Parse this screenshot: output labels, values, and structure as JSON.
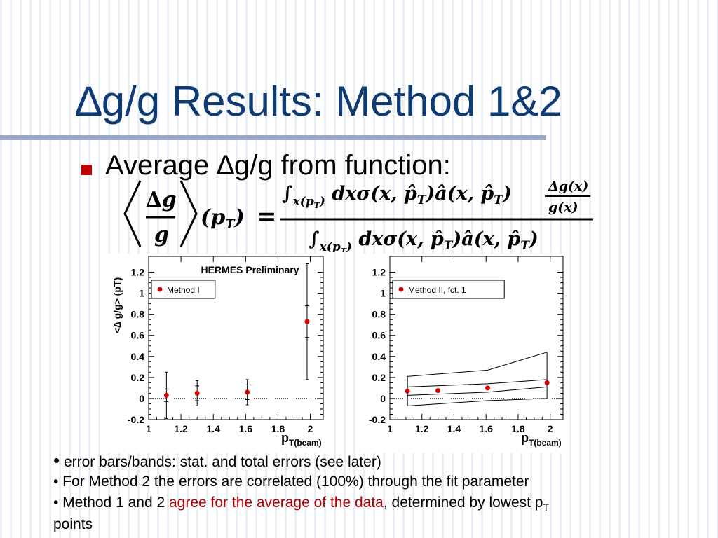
{
  "slide": {
    "title": "∆g/g Results: Method 1&2",
    "bullet": "Average ∆g/g from function:",
    "formula": {
      "lhs_num": "∆g",
      "lhs_den": "g",
      "lhs_arg": "(p̂",
      "rhs_num": "∫ x(pT) dxσ(x, p̂T) â(x, p̂T) ∆g(x)/g(x)",
      "rhs_den": "∫ x(pT) dxσ(x, p̂T) â(x, p̂T)"
    },
    "notes": {
      "line1_bullet": "•",
      "line1": " error bars/bands: stat. and total errors (see later)",
      "line2": "• For Method 2 the errors are correlated (100%) through the fit parameter",
      "line3_a": "• Method 1 and 2 ",
      "line3_red": "agree for the average of the data",
      "line3_b": ", determined by lowest p",
      "line3_sub": "T",
      "line4": "points"
    }
  },
  "chart_data": [
    {
      "type": "scatter",
      "title": "HERMES Preliminary",
      "ylabel": "<∆ g/g> (pT)",
      "xlabel": "pT(beam)",
      "xlim": [
        1.0,
        2.08
      ],
      "ylim": [
        -0.2,
        1.35
      ],
      "xticks": [
        "1",
        "1.2",
        "1.4",
        "1.6",
        "1.8",
        "2"
      ],
      "yticks": [
        "-0.2",
        "0",
        "0.2",
        "0.4",
        "0.6",
        "0.8",
        "1",
        "1.2"
      ],
      "legend": "Method I",
      "legend_position": "top-left",
      "points": [
        {
          "x": 1.11,
          "y": 0.03,
          "stat": 0.06,
          "total": 0.22
        },
        {
          "x": 1.3,
          "y": 0.05,
          "stat": 0.07,
          "total": 0.12
        },
        {
          "x": 1.61,
          "y": 0.06,
          "stat": 0.07,
          "total": 0.12
        },
        {
          "x": 1.98,
          "y": 0.73,
          "stat": 0.15,
          "total": 0.55
        }
      ],
      "zero_line": true
    },
    {
      "type": "scatter",
      "title": "",
      "ylabel": "",
      "xlabel": "pT(beam)",
      "xlim": [
        1.0,
        2.08
      ],
      "ylim": [
        -0.2,
        1.35
      ],
      "xticks": [
        "1",
        "1.2",
        "1.4",
        "1.6",
        "1.8",
        "2"
      ],
      "yticks": [
        "-0.2",
        "0",
        "0.2",
        "0.4",
        "0.6",
        "0.8",
        "1",
        "1.2"
      ],
      "legend": "Method II, fct. 1",
      "legend_position": "top-left",
      "points": [
        {
          "x": 1.11,
          "y": 0.07
        },
        {
          "x": 1.3,
          "y": 0.075
        },
        {
          "x": 1.61,
          "y": 0.1
        },
        {
          "x": 1.98,
          "y": 0.15
        }
      ],
      "bands": {
        "x": [
          1.11,
          1.61,
          1.98
        ],
        "outer_upper": [
          0.21,
          0.27,
          0.44
        ],
        "inner_upper": [
          0.11,
          0.14,
          0.18
        ],
        "inner_lower": [
          0.03,
          0.06,
          0.11
        ],
        "outer_lower": [
          -0.07,
          -0.02,
          0.0
        ]
      },
      "zero_line": true
    }
  ],
  "colors": {
    "title": "#0e3b73",
    "rule": "#97a9c6",
    "bullet": "#c00000",
    "marker": "#d40000",
    "hermes": "#d40000",
    "highlight": "#b00000"
  }
}
